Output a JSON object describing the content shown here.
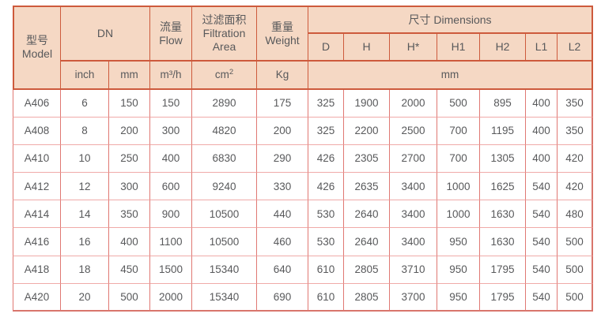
{
  "table": {
    "header": {
      "model": "型号\nModel",
      "dn": "DN",
      "flow": "流量\nFlow",
      "area": "过滤面积\nFiltration\nArea",
      "weight": "重量\nWeight",
      "dimensions": "尺寸 Dimensions",
      "dim_cols": [
        "D",
        "H",
        "H*",
        "H1",
        "H2",
        "L1",
        "L2"
      ],
      "units": {
        "inch": "inch",
        "mm": "mm",
        "flow": "m³/h",
        "area": "cm²",
        "weight": "Kg",
        "dims": "mm"
      }
    },
    "rows": [
      {
        "model": "A406",
        "inch": "6",
        "mm": "150",
        "flow": "150",
        "area": "2890",
        "weight": "175",
        "dims": [
          "325",
          "1900",
          "2000",
          "500",
          "895",
          "400",
          "350"
        ]
      },
      {
        "model": "A408",
        "inch": "8",
        "mm": "200",
        "flow": "300",
        "area": "4820",
        "weight": "200",
        "dims": [
          "325",
          "2200",
          "2500",
          "700",
          "1195",
          "400",
          "350"
        ]
      },
      {
        "model": "A410",
        "inch": "10",
        "mm": "250",
        "flow": "400",
        "area": "6830",
        "weight": "290",
        "dims": [
          "426",
          "2305",
          "2700",
          "700",
          "1305",
          "400",
          "420"
        ]
      },
      {
        "model": "A412",
        "inch": "12",
        "mm": "300",
        "flow": "600",
        "area": "9240",
        "weight": "330",
        "dims": [
          "426",
          "2635",
          "3400",
          "1000",
          "1625",
          "540",
          "420"
        ]
      },
      {
        "model": "A414",
        "inch": "14",
        "mm": "350",
        "flow": "900",
        "area": "10500",
        "weight": "440",
        "dims": [
          "530",
          "2640",
          "3400",
          "1000",
          "1630",
          "540",
          "480"
        ]
      },
      {
        "model": "A416",
        "inch": "16",
        "mm": "400",
        "flow": "1100",
        "area": "10500",
        "weight": "460",
        "dims": [
          "530",
          "2640",
          "3400",
          "950",
          "1630",
          "540",
          "500"
        ]
      },
      {
        "model": "A418",
        "inch": "18",
        "mm": "450",
        "flow": "1500",
        "area": "15340",
        "weight": "640",
        "dims": [
          "610",
          "2805",
          "3710",
          "950",
          "1795",
          "540",
          "500"
        ]
      },
      {
        "model": "A420",
        "inch": "20",
        "mm": "500",
        "flow": "2000",
        "area": "15340",
        "weight": "690",
        "dims": [
          "610",
          "2805",
          "3700",
          "950",
          "1795",
          "540",
          "500"
        ]
      }
    ],
    "colors": {
      "header_bg": "#f5d8c4",
      "header_border": "#cd5a3c",
      "data_border_vertical": "#e07873",
      "data_border_horizontal": "#f0aaa8",
      "outer_border": "#d9756c",
      "text": "#58595b"
    }
  }
}
